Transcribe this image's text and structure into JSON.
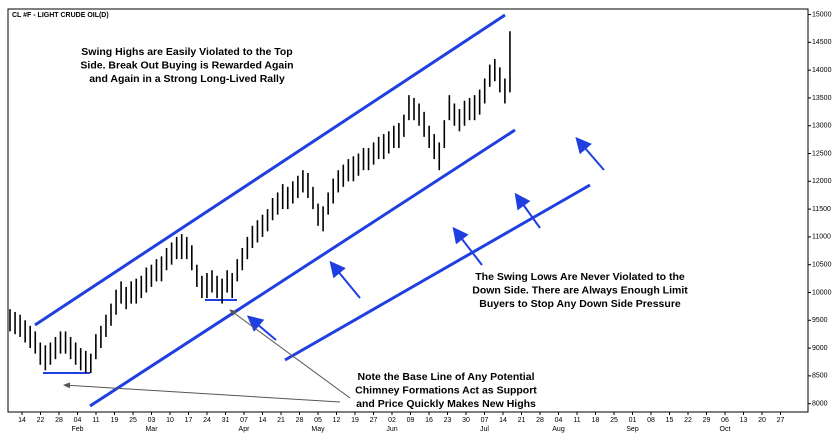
{
  "chart_data": {
    "type": "ohlc",
    "title": "CL #F - LIGHT CRUDE OIL(D)",
    "color": "#000000",
    "series": [
      {
        "high": [
          97,
          96.5,
          96,
          95,
          94,
          93,
          91,
          90.5,
          91,
          92,
          93,
          93,
          92,
          91,
          90,
          89.5,
          89,
          92.5,
          94,
          96,
          98,
          100.5,
          102,
          101,
          102,
          102.5,
          103,
          104.5,
          105,
          106,
          106.5,
          108,
          109,
          110,
          110.5,
          110,
          108.5,
          105,
          103,
          103.5,
          104,
          103,
          102.5,
          104,
          103.5,
          106,
          108,
          110,
          112,
          113,
          114,
          115,
          117,
          118,
          119.5,
          119,
          120,
          121,
          122,
          121.5,
          119,
          116,
          115.5,
          118,
          120.5,
          122,
          123,
          124,
          124.5,
          125,
          126,
          126,
          127,
          128,
          128.5,
          129,
          130,
          130.5,
          132,
          135.5,
          135,
          134,
          132.5,
          130,
          128.5,
          127,
          131,
          135.5,
          134,
          133,
          134.5,
          135,
          135.5,
          136.5,
          138.5,
          141,
          142,
          140.5,
          138.5,
          147
        ],
        "low": [
          93,
          92.5,
          92,
          91,
          90,
          89,
          87,
          86,
          87,
          88,
          89,
          89,
          88,
          87,
          86,
          85.5,
          85.5,
          88,
          90,
          92,
          94,
          96,
          98,
          97,
          98,
          98,
          99,
          100,
          101,
          102,
          102,
          104,
          105,
          106,
          106,
          106,
          104,
          101,
          99,
          99,
          100,
          99,
          98,
          100,
          99,
          102,
          104,
          106,
          108,
          109,
          110,
          111,
          113,
          114,
          115,
          115,
          116,
          117,
          118,
          117,
          115,
          112,
          111,
          114,
          116,
          118,
          119,
          120,
          120,
          121,
          122,
          122,
          123,
          124,
          124,
          125,
          126,
          126,
          128,
          131,
          131,
          130,
          128,
          126,
          124,
          122,
          126,
          131,
          130,
          129,
          130,
          131,
          131,
          132,
          134,
          137,
          138,
          136,
          134,
          136
        ]
      }
    ],
    "ylim": [
      78.5,
      151
    ],
    "yticks": [
      {
        "value": 80,
        "label": "8000"
      },
      {
        "value": 85,
        "label": "8500"
      },
      {
        "value": 90,
        "label": "9000"
      },
      {
        "value": 95,
        "label": "9500"
      },
      {
        "value": 100,
        "label": "10000"
      },
      {
        "value": 105,
        "label": "10500"
      },
      {
        "value": 110,
        "label": "11000"
      },
      {
        "value": 115,
        "label": "11500"
      },
      {
        "value": 120,
        "label": "12000"
      },
      {
        "value": 125,
        "label": "12500"
      },
      {
        "value": 130,
        "label": "13000"
      },
      {
        "value": 135,
        "label": "13500"
      },
      {
        "value": 140,
        "label": "14000"
      },
      {
        "value": 145,
        "label": "14500"
      },
      {
        "value": 150,
        "label": "15000"
      }
    ],
    "xtick_labels": [
      "14",
      "22",
      "28",
      "04",
      "11",
      "19",
      "25",
      "03",
      "10",
      "17",
      "24",
      "31",
      "07",
      "14",
      "21",
      "28",
      "05",
      "12",
      "19",
      "27",
      "02",
      "09",
      "16",
      "23",
      "30",
      "07",
      "14",
      "21",
      "28",
      "04",
      "11",
      "18",
      "25",
      "01",
      "08",
      "15",
      "22",
      "29",
      "06",
      "13",
      "20",
      "27"
    ],
    "xtick_months": [
      null,
      null,
      null,
      "Feb",
      null,
      null,
      null,
      "Mar",
      null,
      null,
      null,
      null,
      "Apr",
      null,
      null,
      null,
      "May",
      null,
      null,
      null,
      "Jun",
      null,
      null,
      null,
      null,
      "Jul",
      null,
      null,
      null,
      "Aug",
      null,
      null,
      null,
      "Sep",
      null,
      null,
      null,
      null,
      "Oct",
      null,
      null,
      null
    ],
    "annotations": [
      {
        "lines": [
          "Swing Highs are Easily Violated to the Top",
          "Side. Break Out Buying is Rewarded Again",
          "and Again in a Strong Long-Lived Rally"
        ]
      },
      {
        "lines": [
          "The Swing Lows Are Never Violated to the",
          "Down Side. There are Always Enough Limit",
          "Buyers to Stop Any Down Side Pressure"
        ]
      },
      {
        "lines": [
          "Note the Base Line of Any Potential",
          "Chimney Formations Act as Support",
          "and Price Quickly Makes New Highs"
        ]
      }
    ]
  }
}
